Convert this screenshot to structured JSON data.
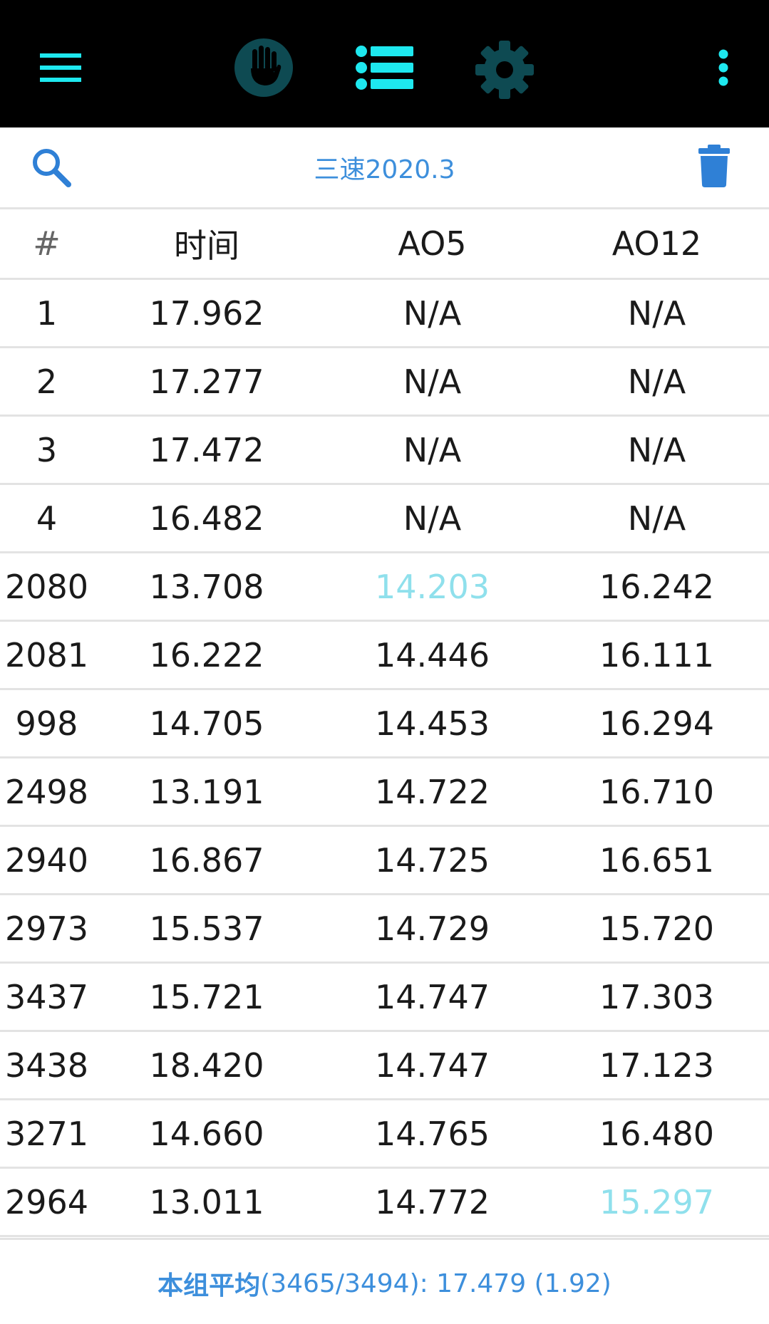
{
  "colors": {
    "accent_cyan": "#1ee8ef",
    "dark_teal": "#0e4a52",
    "link_blue": "#3d8fdc",
    "highlight": "#8fe0ec"
  },
  "appbar": {
    "icons": [
      "menu-icon",
      "palm-timer-icon",
      "list-icon",
      "gear-icon",
      "more-vert-icon"
    ]
  },
  "toolbar": {
    "title": "三速2020.3",
    "icons": [
      "search-icon",
      "trash-icon"
    ]
  },
  "table": {
    "headers": [
      "#",
      "时间",
      "AO5",
      "AO12"
    ],
    "rows": [
      [
        "1",
        "17.962",
        "N/A",
        "N/A"
      ],
      [
        "2",
        "17.277",
        "N/A",
        "N/A"
      ],
      [
        "3",
        "17.472",
        "N/A",
        "N/A"
      ],
      [
        "4",
        "16.482",
        "N/A",
        "N/A"
      ],
      [
        "2080",
        "13.708",
        "14.203",
        "16.242"
      ],
      [
        "2081",
        "16.222",
        "14.446",
        "16.111"
      ],
      [
        "998",
        "14.705",
        "14.453",
        "16.294"
      ],
      [
        "2498",
        "13.191",
        "14.722",
        "16.710"
      ],
      [
        "2940",
        "16.867",
        "14.725",
        "16.651"
      ],
      [
        "2973",
        "15.537",
        "14.729",
        "15.720"
      ],
      [
        "3437",
        "15.721",
        "14.747",
        "17.303"
      ],
      [
        "3438",
        "18.420",
        "14.747",
        "17.123"
      ],
      [
        "3271",
        "14.660",
        "14.765",
        "16.480"
      ],
      [
        "2964",
        "13.011",
        "14.772",
        "15.297"
      ]
    ]
  },
  "footer": {
    "label": "本组平均",
    "value": "(3465/3494): 17.479 (1.92)"
  }
}
